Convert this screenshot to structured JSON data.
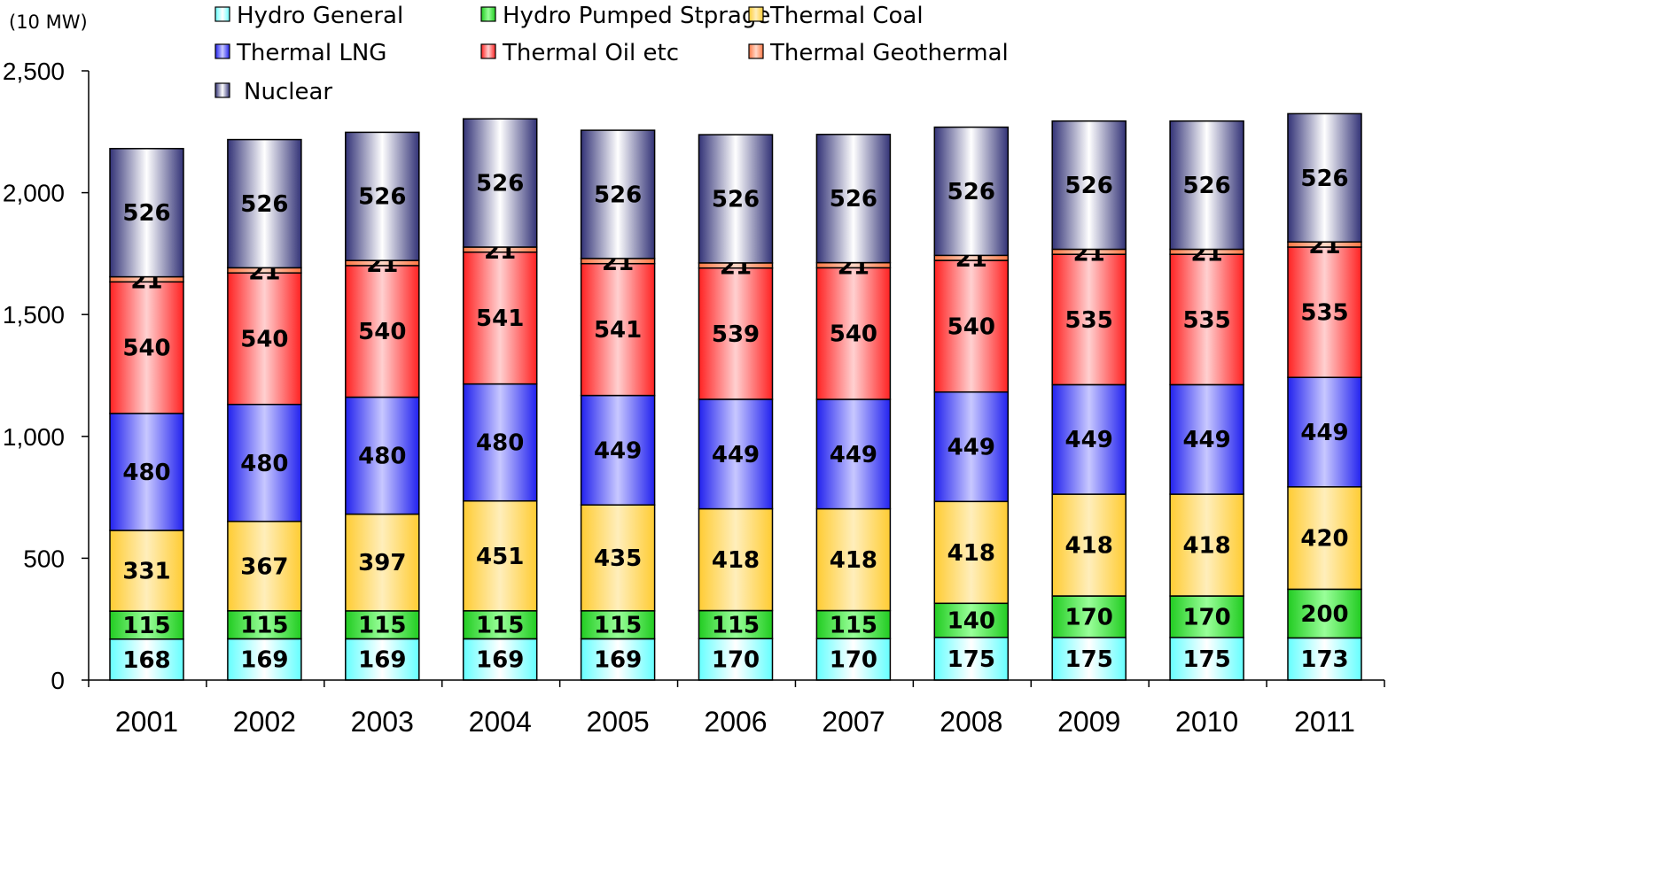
{
  "chart_data": {
    "type": "bar",
    "stacked": true,
    "unit_label": "(10 MW)",
    "categories": [
      "2001",
      "2002",
      "2003",
      "2004",
      "2005",
      "2006",
      "2007",
      "2008",
      "2009",
      "2010",
      "2011"
    ],
    "ylim": [
      0,
      2500
    ],
    "yticks": [
      0,
      500,
      1000,
      1500,
      2000,
      2500
    ],
    "ytick_labels": [
      "0",
      "500",
      "1,000",
      "1,500",
      "2,000",
      "2,500"
    ],
    "grid": false,
    "legend_position": "top",
    "series": [
      {
        "name": "Hydro General",
        "color": "#33ffff",
        "label_colors": [
          "#66ffff",
          "#ffffff"
        ],
        "values": [
          168,
          169,
          169,
          169,
          169,
          170,
          170,
          175,
          175,
          175,
          173
        ]
      },
      {
        "name": "Hydro Pumped Stprage",
        "color": "#33dd33",
        "label_colors": [
          "#22cc22",
          "#99ff99"
        ],
        "values": [
          115,
          115,
          115,
          115,
          115,
          115,
          115,
          140,
          170,
          170,
          200
        ]
      },
      {
        "name": "Thermal Coal",
        "color": "#ffcc33",
        "label_colors": [
          "#ffcc33",
          "#ffeebb"
        ],
        "values": [
          331,
          367,
          397,
          451,
          435,
          418,
          418,
          418,
          418,
          418,
          420
        ]
      },
      {
        "name": "Thermal LNG",
        "color": "#3333ee",
        "label_colors": [
          "#2222ee",
          "#c8c8ff"
        ],
        "values": [
          480,
          480,
          480,
          480,
          449,
          449,
          449,
          449,
          449,
          449,
          449
        ]
      },
      {
        "name": "Thermal Oil etc",
        "color": "#ff3333",
        "label_colors": [
          "#ff2222",
          "#ffd0d0"
        ],
        "values": [
          540,
          540,
          540,
          541,
          541,
          539,
          540,
          540,
          535,
          535,
          535
        ]
      },
      {
        "name": "Thermal Geothermal",
        "color": "#ff8855",
        "label_colors": [
          "#ff7744",
          "#ffd8c8"
        ],
        "values": [
          21,
          21,
          21,
          21,
          21,
          21,
          21,
          21,
          21,
          21,
          21
        ]
      },
      {
        "name": "Nuclear",
        "color": "#444488",
        "label_colors": [
          "#333377",
          "#ffffff"
        ],
        "values": [
          526,
          526,
          526,
          526,
          526,
          526,
          526,
          526,
          526,
          526,
          526
        ]
      }
    ]
  }
}
